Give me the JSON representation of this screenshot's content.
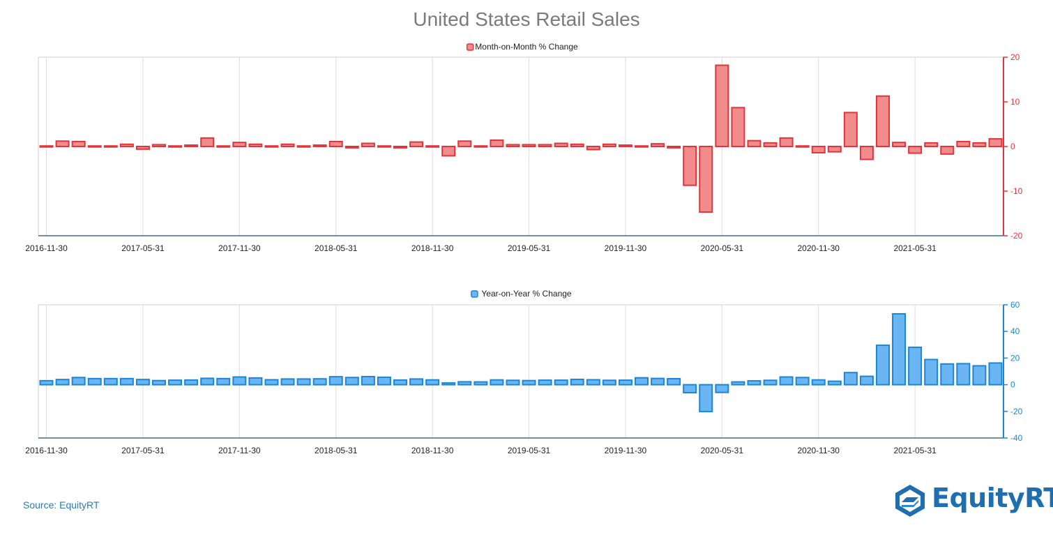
{
  "title": "United States Retail Sales",
  "source": "Source: EquityRT",
  "logo_text": "EquityRT",
  "x_tick_labels": [
    "2016-11-30",
    "2017-05-31",
    "2017-11-30",
    "2018-05-31",
    "2018-11-30",
    "2019-05-31",
    "2019-11-30",
    "2020-05-31",
    "2020-11-30",
    "2021-05-31"
  ],
  "chart_data": [
    {
      "type": "bar",
      "legend": "Month-on-Month % Change",
      "color_fill": "#f28b8b",
      "color_stroke": "#e0353b",
      "axis_color": "#e0353b",
      "ylim": [
        -20,
        20
      ],
      "yticks": [
        20,
        10,
        0,
        -10,
        -20
      ],
      "y_axis_side": "right",
      "legend_position": "top-center",
      "grid": "vertical",
      "x": [
        "2016-11-30",
        "2016-12-31",
        "2017-01-31",
        "2017-02-28",
        "2017-03-31",
        "2017-04-30",
        "2017-05-31",
        "2017-06-30",
        "2017-07-31",
        "2017-08-31",
        "2017-09-30",
        "2017-10-31",
        "2017-11-30",
        "2017-12-31",
        "2018-01-31",
        "2018-02-28",
        "2018-03-31",
        "2018-04-30",
        "2018-05-31",
        "2018-06-30",
        "2018-07-31",
        "2018-08-31",
        "2018-09-30",
        "2018-10-31",
        "2018-11-30",
        "2018-12-31",
        "2019-01-31",
        "2019-02-28",
        "2019-03-31",
        "2019-04-30",
        "2019-05-31",
        "2019-06-30",
        "2019-07-31",
        "2019-08-31",
        "2019-09-30",
        "2019-10-31",
        "2019-11-30",
        "2019-12-31",
        "2020-01-31",
        "2020-02-29",
        "2020-03-31",
        "2020-04-30",
        "2020-05-31",
        "2020-06-30",
        "2020-07-31",
        "2020-08-31",
        "2020-09-30",
        "2020-10-31",
        "2020-11-30",
        "2020-12-31",
        "2021-01-31",
        "2021-02-28",
        "2021-03-31",
        "2021-04-30",
        "2021-05-31",
        "2021-06-30",
        "2021-07-31",
        "2021-08-31",
        "2021-09-30",
        "2021-10-31"
      ],
      "values": [
        0.1,
        1.2,
        1.1,
        -0.1,
        -0.2,
        0.5,
        -0.6,
        0.4,
        0.0,
        0.3,
        1.9,
        0.1,
        0.9,
        0.5,
        -0.2,
        0.5,
        -0.1,
        0.3,
        1.1,
        -0.3,
        0.7,
        -0.2,
        -0.3,
        1.0,
        0.2,
        -2.1,
        1.2,
        0.1,
        1.4,
        0.4,
        0.4,
        0.4,
        0.7,
        0.5,
        -0.7,
        0.5,
        0.3,
        0.2,
        0.6,
        -0.3,
        -8.7,
        -14.7,
        18.2,
        8.7,
        1.3,
        0.8,
        1.9,
        0.1,
        -1.4,
        -1.2,
        7.6,
        -2.9,
        11.3,
        0.9,
        -1.5,
        0.8,
        -1.7,
        1.1,
        0.8,
        1.7
      ]
    },
    {
      "type": "bar",
      "legend": "Year-on-Year % Change",
      "color_fill": "#6ab5f2",
      "color_stroke": "#1a86d8",
      "axis_color": "#1a86d8",
      "ylim": [
        -40,
        60
      ],
      "yticks": [
        60,
        40,
        20,
        0,
        -20,
        -40
      ],
      "y_axis_side": "right",
      "legend_position": "top-center",
      "grid": "vertical",
      "x": [
        "2016-11-30",
        "2016-12-31",
        "2017-01-31",
        "2017-02-28",
        "2017-03-31",
        "2017-04-30",
        "2017-05-31",
        "2017-06-30",
        "2017-07-31",
        "2017-08-31",
        "2017-09-30",
        "2017-10-31",
        "2017-11-30",
        "2017-12-31",
        "2018-01-31",
        "2018-02-28",
        "2018-03-31",
        "2018-04-30",
        "2018-05-31",
        "2018-06-30",
        "2018-07-31",
        "2018-08-31",
        "2018-09-30",
        "2018-10-31",
        "2018-11-30",
        "2018-12-31",
        "2019-01-31",
        "2019-02-28",
        "2019-03-31",
        "2019-04-30",
        "2019-05-31",
        "2019-06-30",
        "2019-07-31",
        "2019-08-31",
        "2019-09-30",
        "2019-10-31",
        "2019-11-30",
        "2019-12-31",
        "2020-01-31",
        "2020-02-29",
        "2020-03-31",
        "2020-04-30",
        "2020-05-31",
        "2020-06-30",
        "2020-07-31",
        "2020-08-31",
        "2020-09-30",
        "2020-10-31",
        "2020-11-30",
        "2020-12-31",
        "2021-01-31",
        "2021-02-28",
        "2021-03-31",
        "2021-04-30",
        "2021-05-31",
        "2021-06-30",
        "2021-07-31",
        "2021-08-31",
        "2021-09-30",
        "2021-10-31"
      ],
      "values": [
        3.0,
        3.9,
        5.4,
        4.6,
        4.6,
        4.6,
        3.9,
        3.1,
        3.4,
        3.5,
        4.8,
        4.6,
        5.8,
        5.1,
        3.7,
        4.3,
        4.3,
        4.4,
        6.0,
        5.4,
        6.1,
        5.6,
        3.5,
        4.3,
        3.6,
        1.3,
        2.2,
        2.1,
        3.6,
        3.3,
        3.1,
        3.4,
        3.4,
        4.0,
        3.7,
        3.3,
        3.4,
        5.2,
        4.7,
        4.5,
        -6.0,
        -20.2,
        -5.8,
        2.1,
        2.9,
        3.3,
        5.8,
        5.4,
        3.6,
        2.6,
        9.1,
        6.3,
        29.6,
        53.2,
        28.1,
        18.9,
        15.6,
        15.8,
        14.2,
        16.3
      ]
    }
  ]
}
